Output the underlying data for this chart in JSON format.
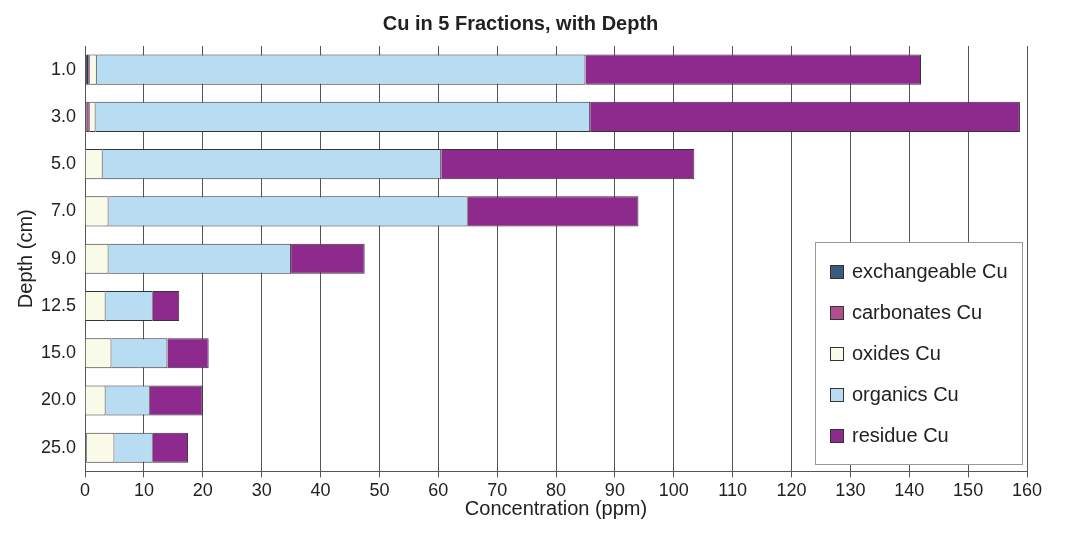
{
  "chart_data": {
    "type": "bar",
    "orientation": "horizontal",
    "stacked": true,
    "title": "Cu in 5 Fractions, with Depth",
    "xlabel": "Concentration (ppm)",
    "ylabel": "Depth (cm)",
    "categories": [
      "1.0",
      "3.0",
      "5.0",
      "7.0",
      "9.0",
      "12.5",
      "15.0",
      "20.0",
      "25.0"
    ],
    "series": [
      {
        "name": "exchangeable Cu",
        "color": "#3a5a80",
        "values": [
          0.5,
          0.3,
          0,
          0,
          0,
          0,
          0,
          0,
          0.3
        ]
      },
      {
        "name": "carbonates Cu",
        "color": "#b04e8e",
        "values": [
          0.3,
          0.5,
          0,
          0,
          0,
          0,
          0,
          0,
          0
        ]
      },
      {
        "name": "oxides Cu",
        "color": "#fafae8",
        "values": [
          1.2,
          1,
          3,
          4,
          4,
          3.5,
          4.5,
          3.5,
          4.7
        ]
      },
      {
        "name": "organics Cu",
        "color": "#b8dcf2",
        "values": [
          83,
          84,
          57.5,
          61,
          31,
          8,
          9.5,
          7.5,
          6.5
        ]
      },
      {
        "name": "residue Cu",
        "color": "#8e2a8e",
        "values": [
          57,
          73,
          43,
          29,
          12.5,
          4.5,
          7,
          9,
          6
        ]
      }
    ],
    "xlim": [
      0,
      160
    ],
    "xticks": [
      0,
      10,
      20,
      30,
      40,
      50,
      60,
      70,
      80,
      90,
      100,
      110,
      120,
      130,
      140,
      150,
      160
    ],
    "grid": "x",
    "legend": "bottom right"
  }
}
